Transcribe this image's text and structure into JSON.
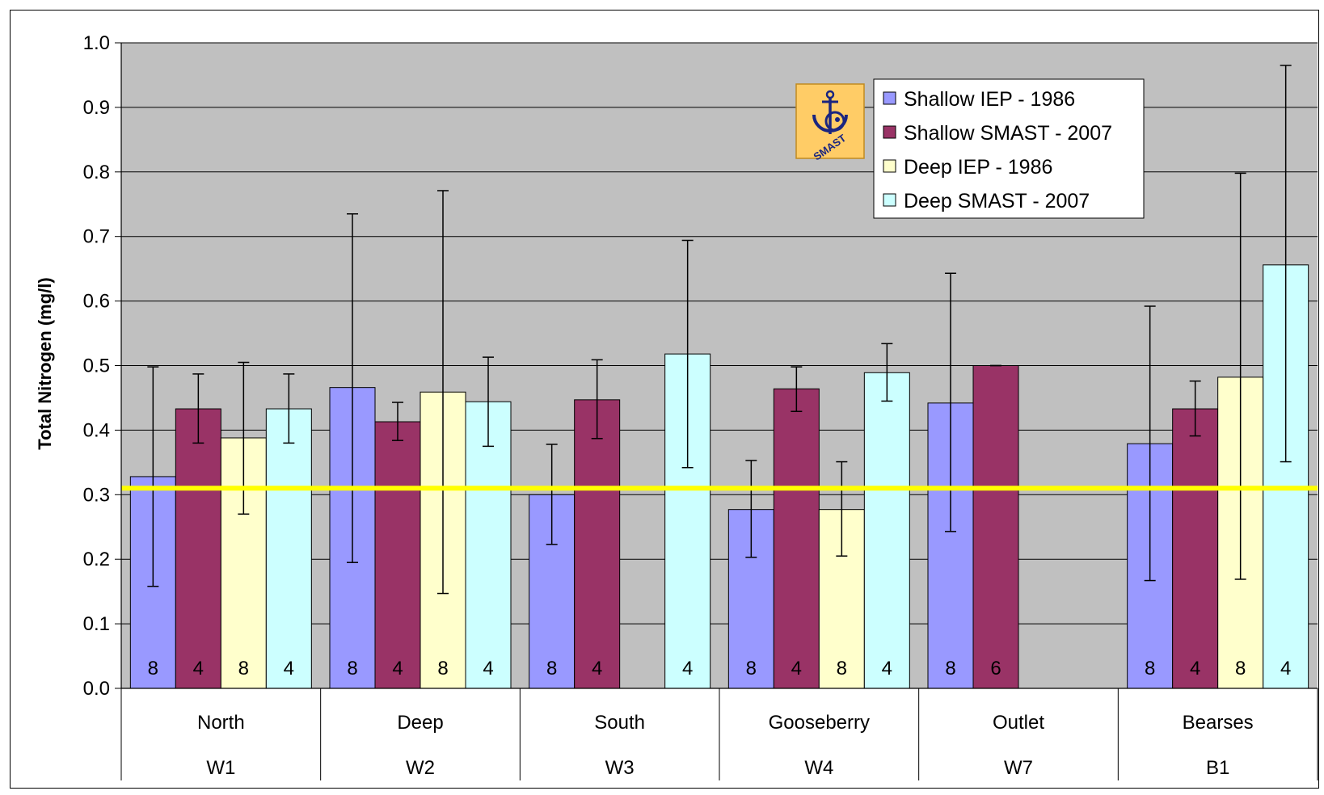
{
  "chart_data": {
    "type": "bar",
    "ylabel": "Total Nitrogen (mg/l)",
    "ylim": [
      0,
      1.0
    ],
    "yticks": [
      "0.0",
      "0.1",
      "0.2",
      "0.3",
      "0.4",
      "0.5",
      "0.6",
      "0.7",
      "0.8",
      "0.9",
      "1.0"
    ],
    "grid": true,
    "legend_position": "top-right",
    "logo_text": "SMAST",
    "categories": [
      "North",
      "Deep",
      "South",
      "Gooseberry",
      "Outlet",
      "Bearses"
    ],
    "sub_categories": [
      "W1",
      "W2",
      "W3",
      "W4",
      "W7",
      "B1"
    ],
    "threshold": 0.31,
    "series": [
      {
        "name": "Shallow IEP - 1986",
        "color": "#9999ff",
        "values": [
          0.328,
          0.466,
          0.3,
          0.277,
          0.442,
          0.379
        ],
        "err_low": [
          0.158,
          0.195,
          0.223,
          0.203,
          0.243,
          0.167
        ],
        "err_high": [
          0.498,
          0.735,
          0.378,
          0.353,
          0.643,
          0.592
        ],
        "counts": [
          "8",
          "8",
          "8",
          "8",
          "8",
          "8"
        ]
      },
      {
        "name": "Shallow SMAST - 2007",
        "color": "#993366",
        "values": [
          0.433,
          0.413,
          0.447,
          0.464,
          0.5,
          0.433
        ],
        "err_low": [
          0.38,
          0.384,
          0.387,
          0.429,
          0.5,
          0.391
        ],
        "err_high": [
          0.487,
          0.443,
          0.509,
          0.498,
          0.5,
          0.476
        ],
        "counts": [
          "4",
          "4",
          "4",
          "4",
          "6",
          "4"
        ]
      },
      {
        "name": "Deep IEP - 1986",
        "color": "#ffffcc",
        "values": [
          0.388,
          0.459,
          null,
          0.277,
          null,
          0.482
        ],
        "err_low": [
          0.27,
          0.147,
          null,
          0.205,
          null,
          0.169
        ],
        "err_high": [
          0.505,
          0.771,
          null,
          0.351,
          null,
          0.798
        ],
        "counts": [
          "8",
          "8",
          "",
          "8",
          "",
          "8"
        ]
      },
      {
        "name": "Deep SMAST - 2007",
        "color": "#ccffff",
        "values": [
          0.433,
          0.444,
          0.518,
          0.489,
          null,
          0.656
        ],
        "err_low": [
          0.38,
          0.375,
          0.342,
          0.445,
          null,
          0.351
        ],
        "err_high": [
          0.487,
          0.513,
          0.694,
          0.534,
          null,
          0.965
        ],
        "counts": [
          "4",
          "4",
          "4",
          "4",
          "",
          "4"
        ]
      }
    ]
  }
}
